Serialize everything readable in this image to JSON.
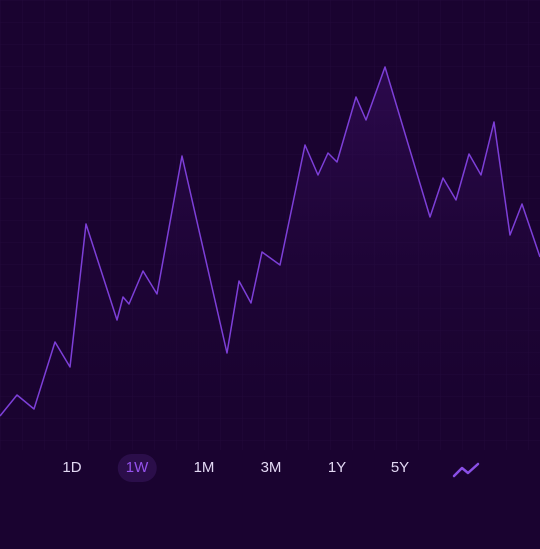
{
  "chart_data": {
    "type": "line",
    "x": [
      0,
      17,
      34,
      55,
      70,
      86,
      117,
      123,
      129,
      143,
      157,
      182,
      227,
      239,
      251,
      262,
      280,
      305,
      318,
      328,
      337,
      356,
      366,
      385,
      430,
      443,
      456,
      469,
      481,
      494,
      510,
      522,
      540
    ],
    "series": [
      {
        "color": "#7d3fd8",
        "values": [
          34,
          55,
          41,
          108,
          83,
          226,
          130,
          153,
          146,
          179,
          156,
          294,
          97,
          169,
          147,
          198,
          185,
          305,
          275,
          297,
          288,
          353,
          330,
          383,
          233,
          272,
          250,
          296,
          275,
          328,
          215,
          246,
          193
        ]
      }
    ],
    "xlim": [
      0,
      540
    ],
    "ylim": [
      0,
      450
    ]
  },
  "controls": {
    "periods": [
      "1D",
      "1W",
      "1M",
      "3M",
      "1Y",
      "5Y"
    ],
    "selected_period": 1
  }
}
